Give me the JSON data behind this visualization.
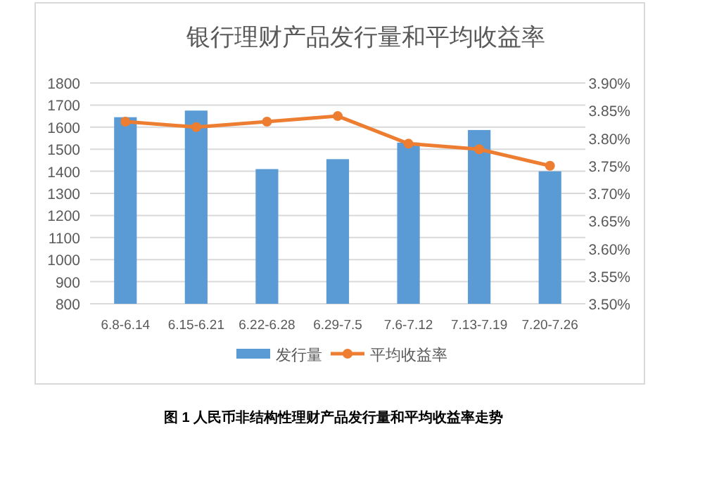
{
  "chart_data": {
    "type": "bar",
    "title": "银行理财产品发行量和平均收益率",
    "categories": [
      "6.8-6.14",
      "6.15-6.21",
      "6.22-6.28",
      "6.29-7.5",
      "7.6-7.12",
      "7.13-7.19",
      "7.20-7.26"
    ],
    "series": [
      {
        "name": "发行量",
        "color": "#5b9bd5",
        "values": [
          1645,
          1675,
          1410,
          1455,
          1530,
          1587,
          1400
        ]
      },
      {
        "name": "平均收益率",
        "color": "#ed7d31",
        "type": "line",
        "axis": "y2",
        "marker": "circle",
        "values": [
          3.83,
          3.82,
          3.83,
          3.84,
          3.79,
          3.78,
          3.75
        ]
      }
    ],
    "ylim": [
      800,
      1800
    ],
    "yticks": [
      800,
      900,
      1000,
      1100,
      1200,
      1300,
      1400,
      1500,
      1600,
      1700,
      1800
    ],
    "y2lim": [
      3.5,
      3.9
    ],
    "y2ticks": [
      {
        "value": 3.5,
        "label": "3.50%"
      },
      {
        "value": 3.55,
        "label": "3.55%"
      },
      {
        "value": 3.6,
        "label": "3.60%"
      },
      {
        "value": 3.65,
        "label": "3.65%"
      },
      {
        "value": 3.7,
        "label": "3.70%"
      },
      {
        "value": 3.75,
        "label": "3.75%"
      },
      {
        "value": 3.8,
        "label": "3.80%"
      },
      {
        "value": 3.85,
        "label": "3.85%"
      },
      {
        "value": 3.9,
        "label": "3.90%"
      }
    ],
    "grid": "y",
    "legend": "bottom",
    "annotations": [
      "图 1 人民币非结构性理财产品发行量和平均收益率走势"
    ]
  }
}
